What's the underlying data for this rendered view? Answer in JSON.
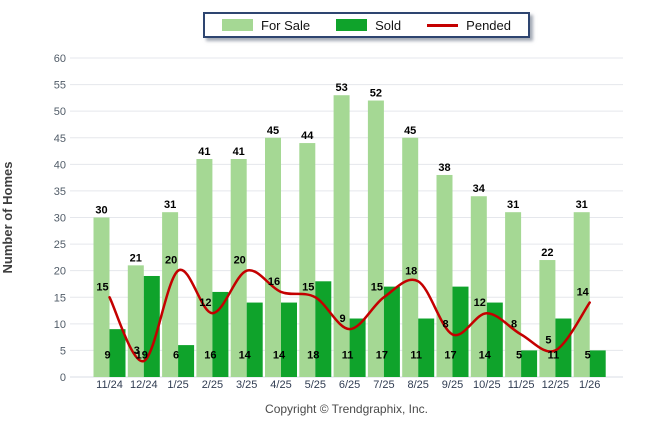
{
  "legend": {
    "items": [
      {
        "label": "For Sale",
        "color": "#A5D894",
        "kind": "bar"
      },
      {
        "label": "Sold",
        "color": "#0FA32B",
        "kind": "bar"
      },
      {
        "label": "Pended",
        "color": "#C40000",
        "kind": "line"
      }
    ]
  },
  "footer": "Copyright © Trendgraphix, Inc.",
  "chart_data": {
    "type": "bar",
    "title": "",
    "categories": [
      "11/24",
      "12/24",
      "1/25",
      "2/25",
      "3/25",
      "4/25",
      "5/25",
      "6/25",
      "7/25",
      "8/25",
      "9/25",
      "10/25",
      "11/25",
      "12/25",
      "1/26"
    ],
    "series": [
      {
        "name": "For Sale",
        "type": "bar",
        "color": "#A5D894",
        "values": [
          30,
          21,
          31,
          41,
          41,
          45,
          44,
          53,
          52,
          45,
          38,
          34,
          31,
          22,
          31
        ]
      },
      {
        "name": "Sold",
        "type": "bar",
        "color": "#0FA32B",
        "values": [
          9,
          19,
          6,
          16,
          14,
          14,
          18,
          11,
          17,
          11,
          17,
          14,
          5,
          11,
          5
        ]
      },
      {
        "name": "Pended",
        "type": "line",
        "color": "#C40000",
        "values": [
          15,
          3,
          20,
          12,
          20,
          16,
          15,
          9,
          15,
          18,
          8,
          12,
          8,
          5,
          14
        ]
      }
    ],
    "xlabel": "",
    "ylabel": "Number of Homes",
    "ylim": [
      0,
      60
    ],
    "ytick_step": 5,
    "grid": true,
    "gridline_color": "#E5E7EC",
    "legend_position": "top-center",
    "value_labels": true
  }
}
